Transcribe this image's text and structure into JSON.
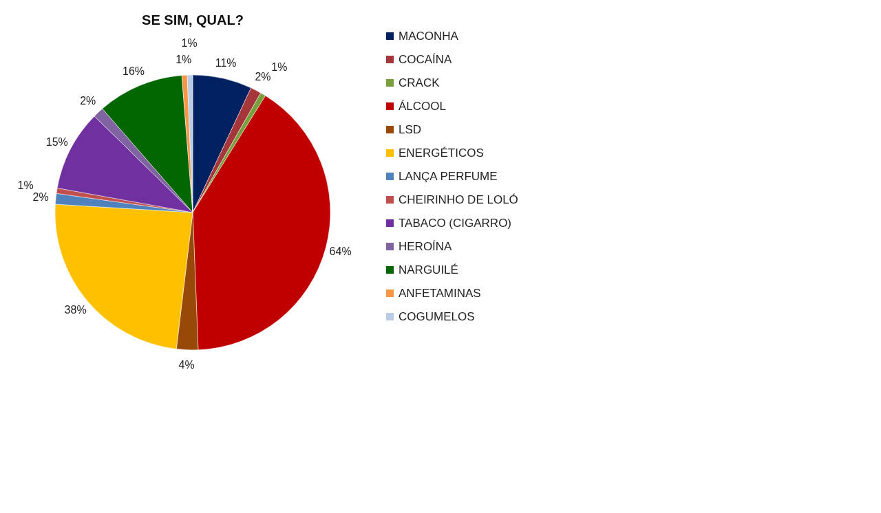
{
  "chart_data": {
    "type": "pie",
    "title": "SE SIM, QUAL?",
    "categories": [
      "MACONHA",
      "COCAÍNA",
      "CRACK",
      "ÁLCOOL",
      "LSD",
      "ENERGÉTICOS",
      "LANÇA PERFUME",
      "CHEIRINHO DE LOLÓ",
      "TABACO (CIGARRO)",
      "HEROÍNA",
      "NARGUILÉ",
      "ANFETAMINAS",
      "COGUMELOS"
    ],
    "values": [
      11,
      2,
      1,
      64,
      4,
      38,
      2,
      1,
      15,
      2,
      16,
      1,
      1
    ],
    "value_labels": [
      "11%",
      "2%",
      "1%",
      "64%",
      "4%",
      "38%",
      "2%",
      "1%",
      "15%",
      "2%",
      "16%",
      "1%",
      "1%"
    ],
    "colors": [
      "#002060",
      "#a5373a",
      "#77a03c",
      "#c00000",
      "#984807",
      "#ffc000",
      "#4f81bd",
      "#c0504d",
      "#7030a0",
      "#8064a2",
      "#006600",
      "#f79646",
      "#b9cde5"
    ],
    "legend": "right"
  }
}
